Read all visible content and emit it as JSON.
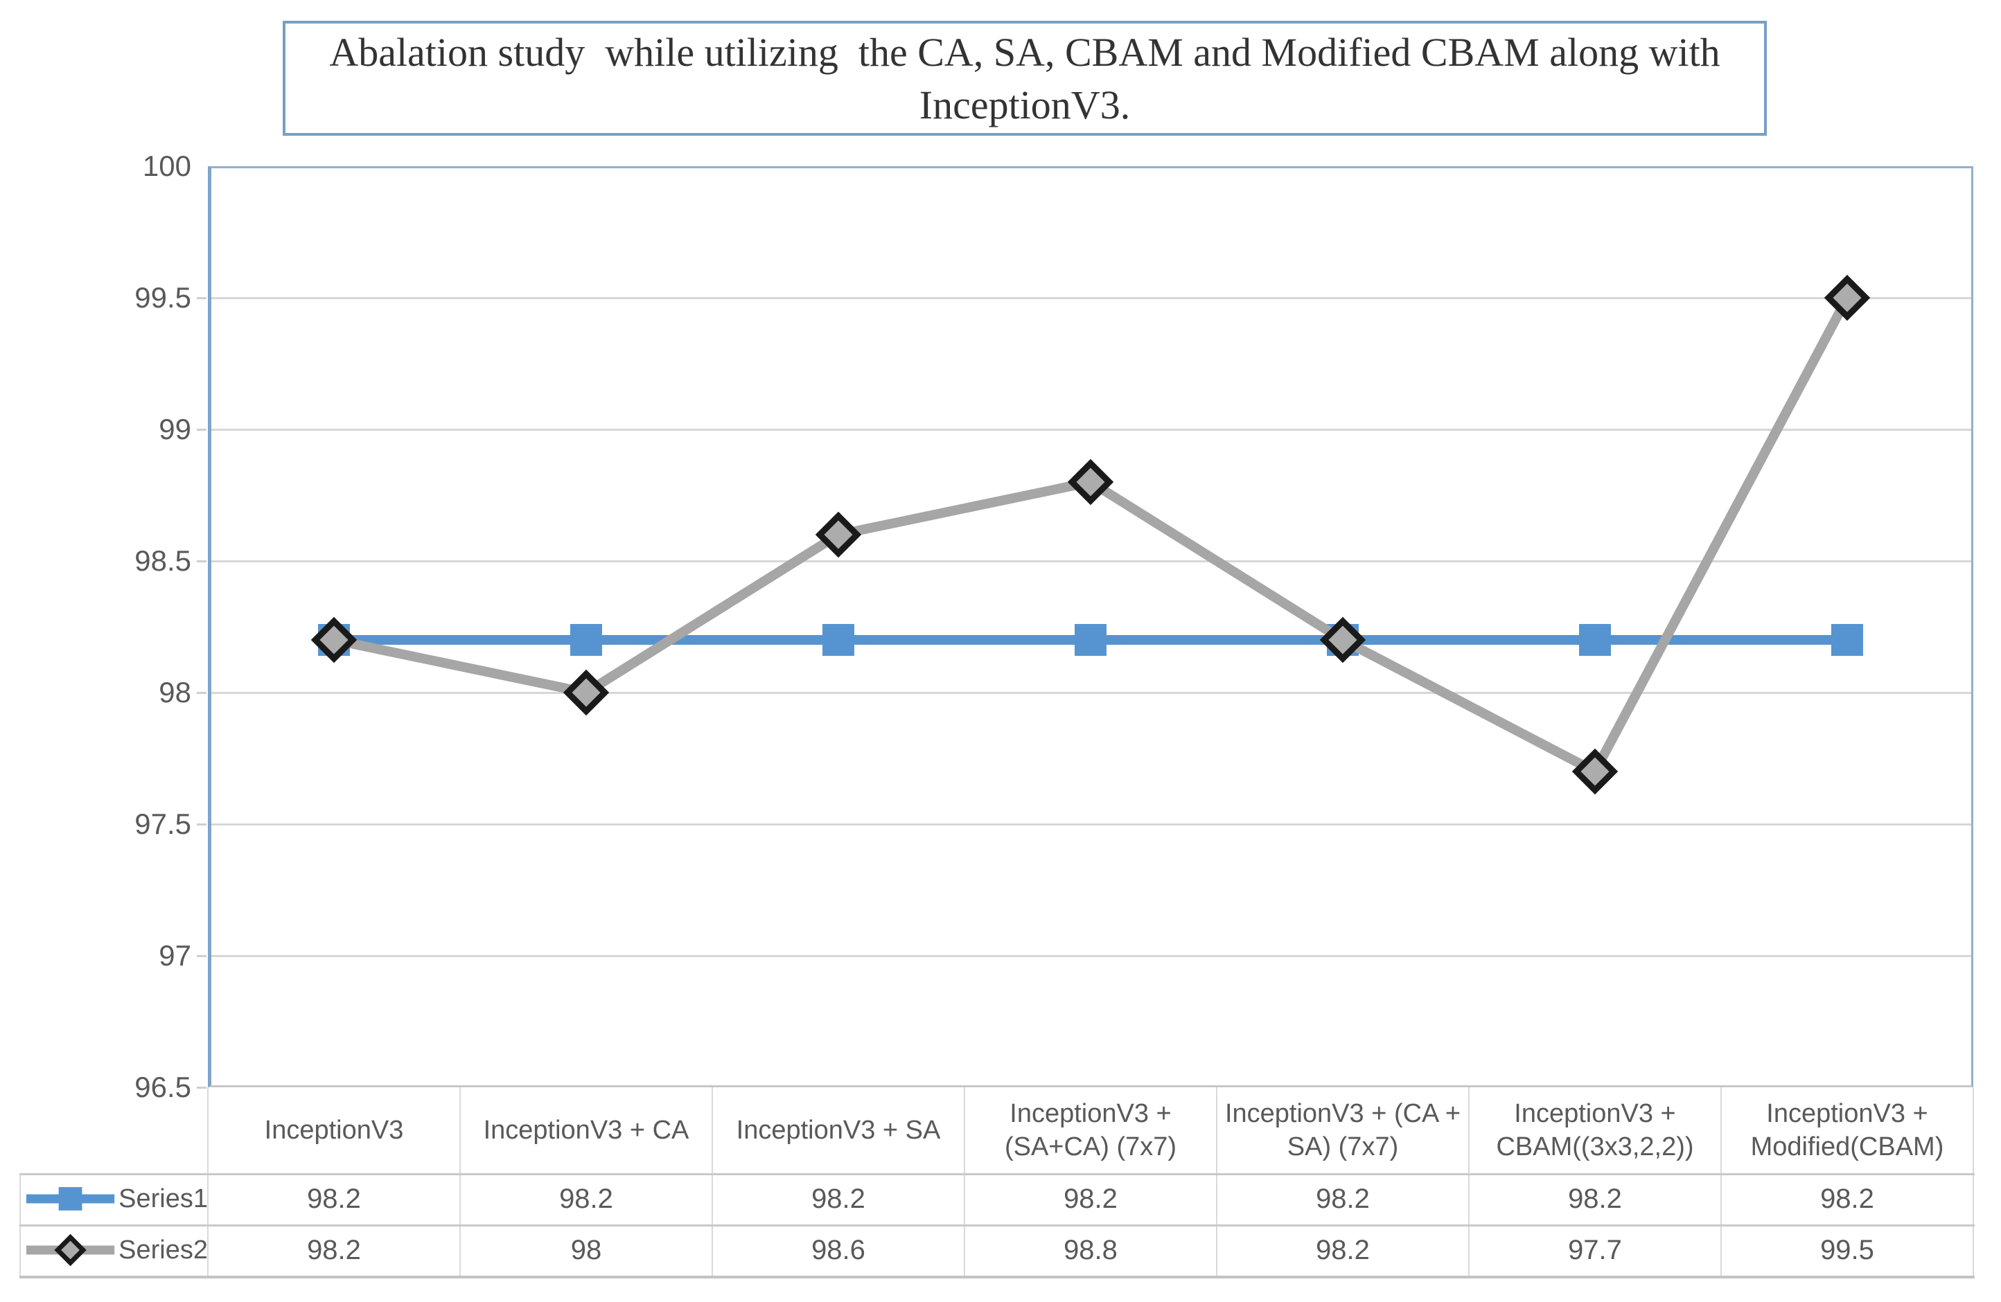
{
  "title": {
    "text": "Abalation study  while utilizing  the CA, SA, CBAM and Modified CBAM along with InceptionV3."
  },
  "chart_data": {
    "type": "line",
    "title": "Abalation study while utilizing the CA, SA, CBAM and Modified CBAM along with InceptionV3.",
    "categories": [
      "InceptionV3",
      "InceptionV3 + CA",
      "InceptionV3 + SA",
      "InceptionV3 + (SA+CA) (7x7)",
      "InceptionV3 + (CA + SA) (7x7)",
      "InceptionV3 + CBAM((3x3,2,2))",
      "InceptionV3 + Modified(CBAM)"
    ],
    "series": [
      {
        "name": "Series1",
        "values": [
          98.2,
          98.2,
          98.2,
          98.2,
          98.2,
          98.2,
          98.2
        ],
        "color": "#5694D1",
        "marker": "square",
        "marker_fill": "#5694D1"
      },
      {
        "name": "Series2",
        "values": [
          98.2,
          98,
          98.6,
          98.8,
          98.2,
          97.7,
          99.5
        ],
        "color": "#A6A6A6",
        "marker": "diamond",
        "marker_fill": "#ACACAC",
        "marker_stroke": "#1A1A1A"
      }
    ],
    "ylim": [
      96.5,
      100
    ],
    "ytick_step": 0.5,
    "yticks": [
      100,
      99.5,
      99,
      98.5,
      98,
      97.5,
      97,
      96.5
    ],
    "xlabel": "",
    "ylabel": "",
    "grid": true,
    "gridline_color": "#D7D7D7",
    "axis_color": "#7FA5CB",
    "tick_label_color": "#595959",
    "legend_position": "table-rows-left",
    "table_shown": true
  }
}
